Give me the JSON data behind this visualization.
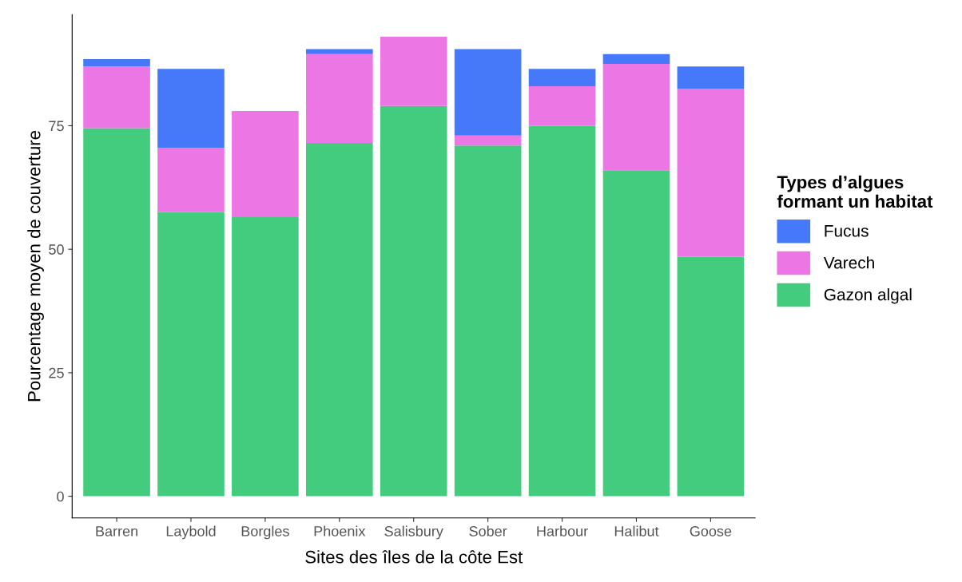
{
  "chart_data": {
    "type": "bar",
    "stacked": true,
    "xlabel": "Sites des îles de la côte Est",
    "ylabel": "Pourcentage moyen de couverture",
    "legend_title": "Types d’algues\nformant un habitat",
    "categories": [
      "Barren",
      "Laybold",
      "Borgles",
      "Phoenix",
      "Salisbury",
      "Sober",
      "Harbour",
      "Halibut",
      "Goose"
    ],
    "series": [
      {
        "name": "Gazon algal",
        "color": "#44cc7e",
        "values": [
          74.5,
          57.5,
          56.5,
          71.5,
          79,
          71,
          75,
          66,
          48.5
        ]
      },
      {
        "name": "Varech",
        "color": "#ec76e3",
        "values": [
          12.5,
          13,
          21.5,
          18,
          14,
          2,
          8,
          21.5,
          34
        ]
      },
      {
        "name": "Fucus",
        "color": "#4679fa",
        "values": [
          1.5,
          16,
          0,
          1,
          0,
          17.5,
          3.5,
          2,
          4.5
        ]
      }
    ],
    "ylim": [
      -4.4,
      97.5
    ],
    "yticks": [
      0,
      25,
      50,
      75
    ],
    "grid": false,
    "legend": "right"
  }
}
